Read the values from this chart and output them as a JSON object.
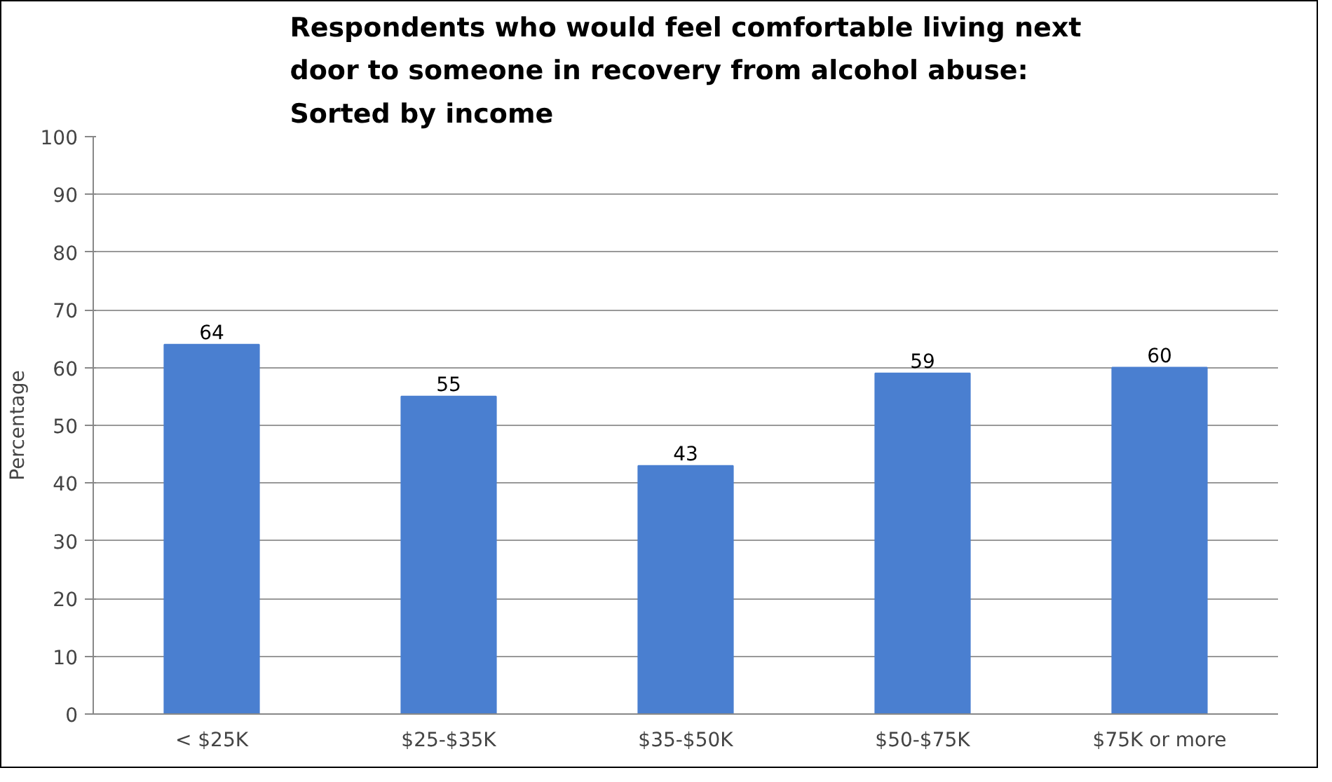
{
  "chart_data": {
    "type": "bar",
    "title": "Respondents who would feel comfortable living next\ndoor to someone in recovery from alcohol abuse:\nSorted by income",
    "ylabel": "Percentage",
    "categories": [
      "< $25K",
      "$25-$35K",
      "$35-$50K",
      "$50-$75K",
      "$75K or more"
    ],
    "values": [
      64,
      55,
      43,
      59,
      60
    ],
    "color": "#4a7fd0",
    "ylim": [
      0,
      100
    ],
    "yticks": [
      0,
      10,
      20,
      30,
      40,
      50,
      60,
      70,
      80,
      90,
      100
    ],
    "grid": "y",
    "data_labels": true
  }
}
